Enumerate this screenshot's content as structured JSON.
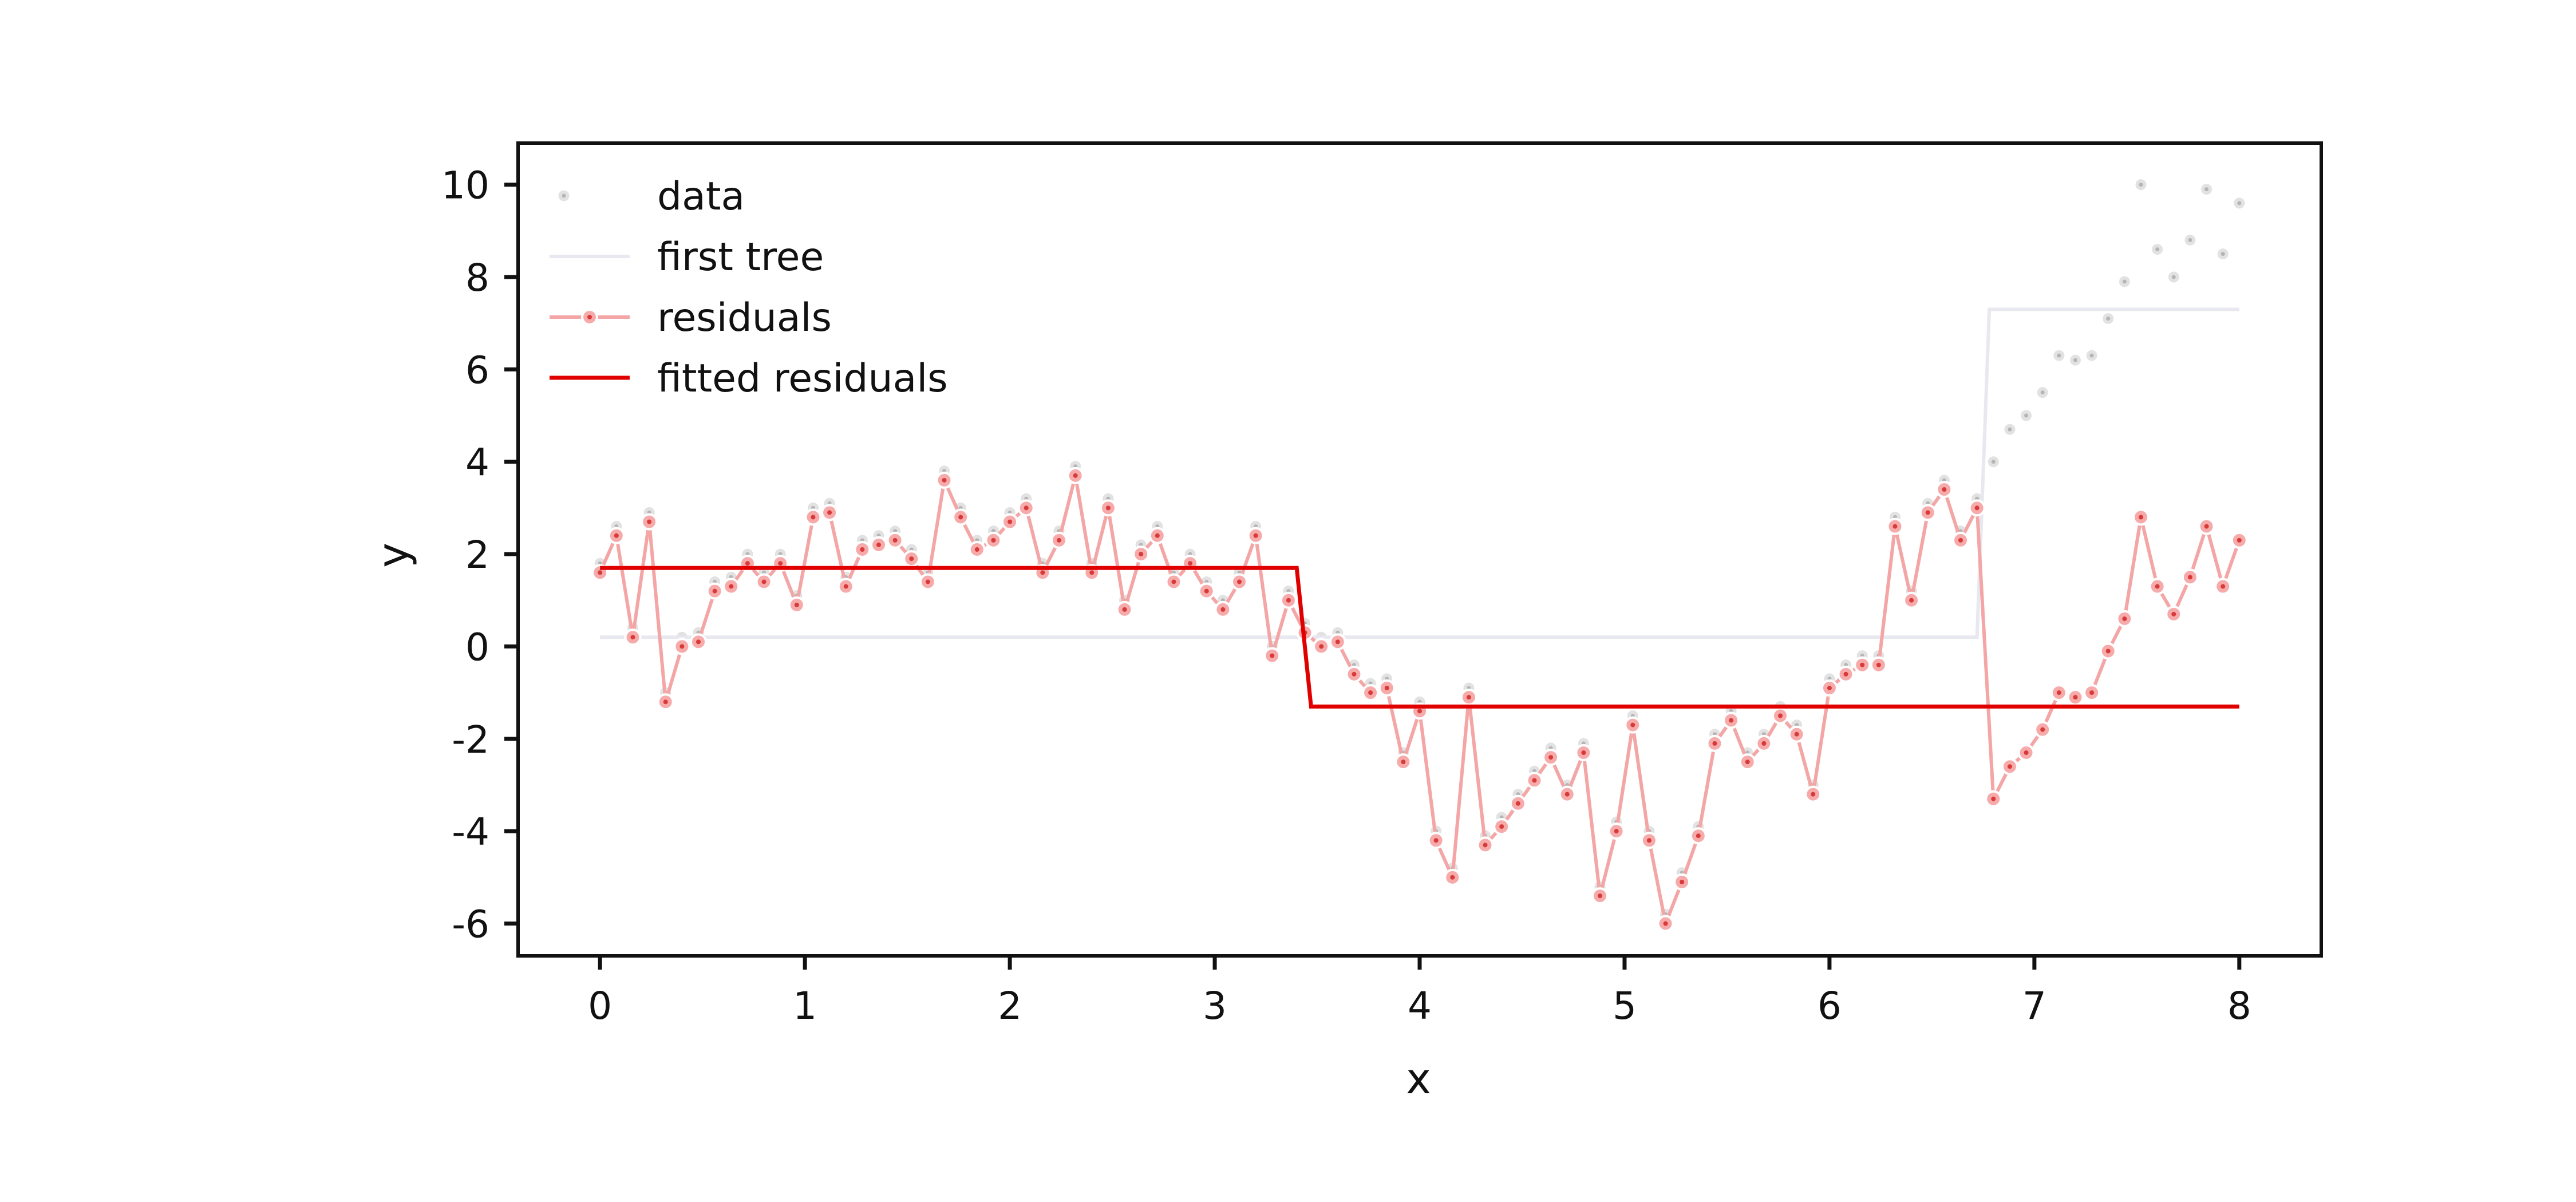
{
  "chart_data": {
    "type": "line",
    "xlabel": "x",
    "ylabel": "y",
    "xlim": [
      -0.4,
      8.4
    ],
    "ylim": [
      -6.7,
      10.9
    ],
    "x_ticks": [
      0,
      1,
      2,
      3,
      4,
      5,
      6,
      7,
      8
    ],
    "y_ticks": [
      -6,
      -4,
      -2,
      0,
      2,
      4,
      6,
      8,
      10
    ],
    "x_tick_labels": [
      "0",
      "1",
      "2",
      "3",
      "4",
      "5",
      "6",
      "7",
      "8"
    ],
    "y_tick_labels": [
      "-6",
      "-4",
      "-2",
      "0",
      "2",
      "4",
      "6",
      "8",
      "10"
    ],
    "legend_position": "top-left",
    "legend": [
      {
        "label": "data"
      },
      {
        "label": "first tree"
      },
      {
        "label": "residuals"
      },
      {
        "label": "fitted residuals"
      }
    ],
    "x": [
      0.0,
      0.08,
      0.16,
      0.24,
      0.32,
      0.4,
      0.48,
      0.56,
      0.64,
      0.72,
      0.8,
      0.88,
      0.96,
      1.04,
      1.12,
      1.2,
      1.28,
      1.36,
      1.44,
      1.52,
      1.6,
      1.68,
      1.76,
      1.84,
      1.92,
      2.0,
      2.08,
      2.16,
      2.24,
      2.32,
      2.4,
      2.48,
      2.56,
      2.64,
      2.72,
      2.8,
      2.88,
      2.96,
      3.04,
      3.12,
      3.2,
      3.28,
      3.36,
      3.44,
      3.52,
      3.6,
      3.68,
      3.76,
      3.84,
      3.92,
      4.0,
      4.08,
      4.16,
      4.24,
      4.32,
      4.4,
      4.48,
      4.56,
      4.64,
      4.72,
      4.8,
      4.88,
      4.96,
      5.04,
      5.12,
      5.2,
      5.28,
      5.36,
      5.44,
      5.52,
      5.6,
      5.68,
      5.76,
      5.84,
      5.92,
      6.0,
      6.08,
      6.16,
      6.24,
      6.32,
      6.4,
      6.48,
      6.56,
      6.64,
      6.72,
      6.8,
      6.88,
      6.96,
      7.04,
      7.12,
      7.2,
      7.28,
      7.36,
      7.44,
      7.52,
      7.6,
      7.68,
      7.76,
      7.84,
      7.92,
      8.0
    ],
    "series": [
      {
        "name": "data",
        "style": "scatter",
        "color": "#cfcfcf",
        "y": [
          1.8,
          2.6,
          0.4,
          2.9,
          -1.0,
          0.2,
          0.3,
          1.4,
          1.5,
          2.0,
          1.6,
          2.0,
          1.1,
          3.0,
          3.1,
          1.5,
          2.3,
          2.4,
          2.5,
          2.1,
          1.6,
          3.8,
          3.0,
          2.3,
          2.5,
          2.9,
          3.2,
          1.8,
          2.5,
          3.9,
          1.8,
          3.2,
          1.0,
          2.2,
          2.6,
          1.6,
          2.0,
          1.4,
          1.0,
          1.6,
          2.6,
          0.0,
          1.2,
          0.5,
          0.2,
          0.3,
          -0.4,
          -0.8,
          -0.7,
          -2.3,
          -1.2,
          -4.0,
          -4.8,
          -0.9,
          -4.1,
          -3.7,
          -3.2,
          -2.7,
          -2.2,
          -3.0,
          -2.1,
          -5.2,
          -3.8,
          -1.5,
          -4.0,
          -5.8,
          -4.9,
          -3.9,
          -1.9,
          -1.4,
          -2.3,
          -1.9,
          -1.3,
          -1.7,
          -3.0,
          -0.7,
          -0.4,
          -0.2,
          -0.2,
          2.8,
          1.2,
          3.1,
          3.6,
          2.5,
          3.2,
          4.0,
          4.7,
          5.0,
          5.5,
          6.3,
          6.2,
          6.3,
          7.1,
          7.9,
          10.0,
          8.6,
          8.0,
          8.8,
          9.9,
          8.5,
          9.6
        ]
      },
      {
        "name": "residuals",
        "style": "line-markers",
        "color": "#f4a6a6",
        "y": [
          1.6,
          2.4,
          0.2,
          2.7,
          -1.2,
          0.0,
          0.1,
          1.2,
          1.3,
          1.8,
          1.4,
          1.8,
          0.9,
          2.8,
          2.9,
          1.3,
          2.1,
          2.2,
          2.3,
          1.9,
          1.4,
          3.6,
          2.8,
          2.1,
          2.3,
          2.7,
          3.0,
          1.6,
          2.3,
          3.7,
          1.6,
          3.0,
          0.8,
          2.0,
          2.4,
          1.4,
          1.8,
          1.2,
          0.8,
          1.4,
          2.4,
          -0.2,
          1.0,
          0.3,
          0.0,
          0.1,
          -0.6,
          -1.0,
          -0.9,
          -2.5,
          -1.4,
          -4.2,
          -5.0,
          -1.1,
          -4.3,
          -3.9,
          -3.4,
          -2.9,
          -2.4,
          -3.2,
          -2.3,
          -5.4,
          -4.0,
          -1.7,
          -4.2,
          -6.0,
          -5.1,
          -4.1,
          -2.1,
          -1.6,
          -2.5,
          -2.1,
          -1.5,
          -1.9,
          -3.2,
          -0.9,
          -0.6,
          -0.4,
          -0.4,
          2.6,
          1.0,
          2.9,
          3.4,
          2.3,
          3.0,
          -3.3,
          -2.6,
          -2.3,
          -1.8,
          -1.0,
          -1.1,
          -1.0,
          -0.1,
          0.6,
          2.8,
          1.3,
          0.7,
          1.5,
          2.6,
          1.3,
          2.3
        ]
      },
      {
        "name": "first tree",
        "style": "step",
        "color": "#e8e8f0",
        "points": [
          [
            0.0,
            0.2
          ],
          [
            6.72,
            0.2
          ],
          [
            6.78,
            7.3
          ],
          [
            8.0,
            7.3
          ]
        ]
      },
      {
        "name": "fitted residuals",
        "style": "step",
        "color": "#e00000",
        "points": [
          [
            0.0,
            1.7
          ],
          [
            3.4,
            1.7
          ],
          [
            3.47,
            -1.3
          ],
          [
            8.0,
            -1.3
          ]
        ]
      }
    ]
  }
}
